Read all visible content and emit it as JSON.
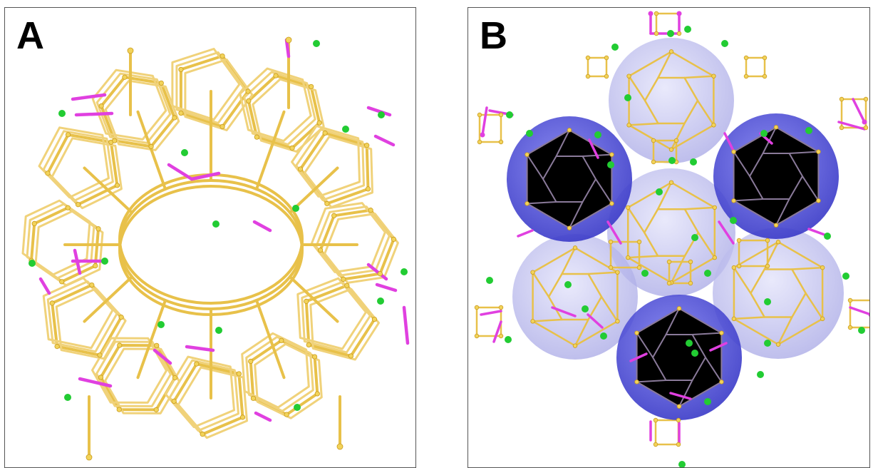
{
  "panels": [
    {
      "label": "A"
    },
    {
      "label": "B"
    }
  ],
  "colors": {
    "framework_bond": "#e8c14a",
    "framework_bond_dark": "#c99b1e",
    "framework_node": "#f2d35a",
    "highlight_bond": "#e040e0",
    "guest_atom": "#22cc33",
    "cage_dark": "#4a4ad8",
    "cage_light": "#b8b8ee"
  }
}
